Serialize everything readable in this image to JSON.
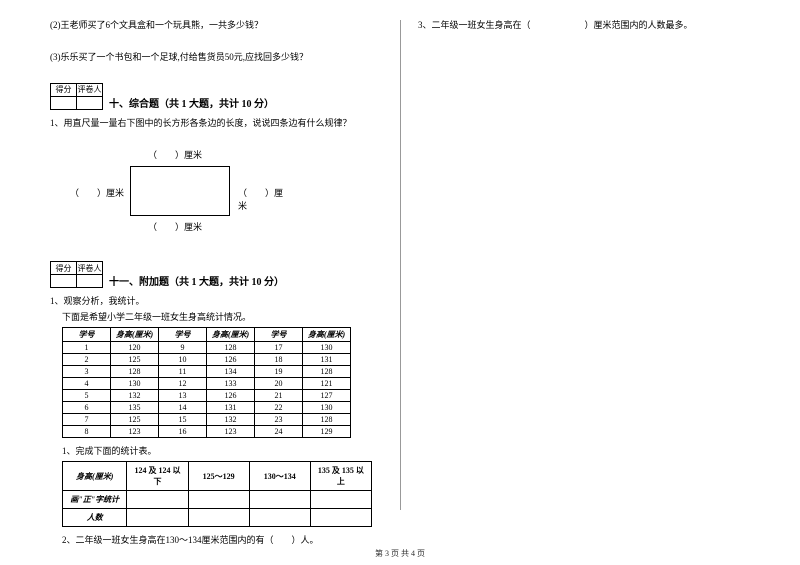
{
  "left": {
    "q2": "(2)王老师买了6个文具盒和一个玩具熊，一共多少钱？",
    "q3": "(3)乐乐买了一个书包和一个足球,付给售货员50元,应找回多少钱？",
    "score_cells": [
      "得分",
      "评卷人"
    ],
    "section10_title": "十、综合题（共 1 大题，共计 10 分）",
    "section10_q1": "1、用直尺量一量右下图中的长方形各条边的长度，说说四条边有什么规律？",
    "rect_label": "（　　）厘米",
    "section11_title": "十一、附加题（共 1 大题，共计 10 分）",
    "section11_q1": "1、观察分析，我统计。",
    "section11_sub": "下面是希望小学二年级一班女生身高统计情况。",
    "table": {
      "headers": [
        "学号",
        "身高(厘米)"
      ],
      "rows": [
        [
          "1",
          "120",
          "9",
          "128",
          "17",
          "130"
        ],
        [
          "2",
          "125",
          "10",
          "126",
          "18",
          "131"
        ],
        [
          "3",
          "128",
          "11",
          "134",
          "19",
          "128"
        ],
        [
          "4",
          "130",
          "12",
          "133",
          "20",
          "121"
        ],
        [
          "5",
          "132",
          "13",
          "126",
          "21",
          "127"
        ],
        [
          "6",
          "135",
          "14",
          "131",
          "22",
          "130"
        ],
        [
          "7",
          "125",
          "15",
          "132",
          "23",
          "128"
        ],
        [
          "8",
          "123",
          "16",
          "123",
          "24",
          "129"
        ]
      ]
    },
    "summary_q1": "1、完成下面的统计表。",
    "summary": {
      "h0": "身高(厘米)",
      "c1": "124 及 124 以下",
      "c2": "125～129",
      "c3": "130～134",
      "c4": "135 及 135 以上",
      "r1": "画\"正\"字统计",
      "r2": "人数"
    },
    "summary_q2": "2、二年级一班女生身高在130～134厘米范围内的有（　　）人。"
  },
  "right": {
    "q3": "3、二年级一班女生身高在（　　　　　　）厘米范围内的人数最多。"
  },
  "footer": "第 3 页 共 4 页"
}
